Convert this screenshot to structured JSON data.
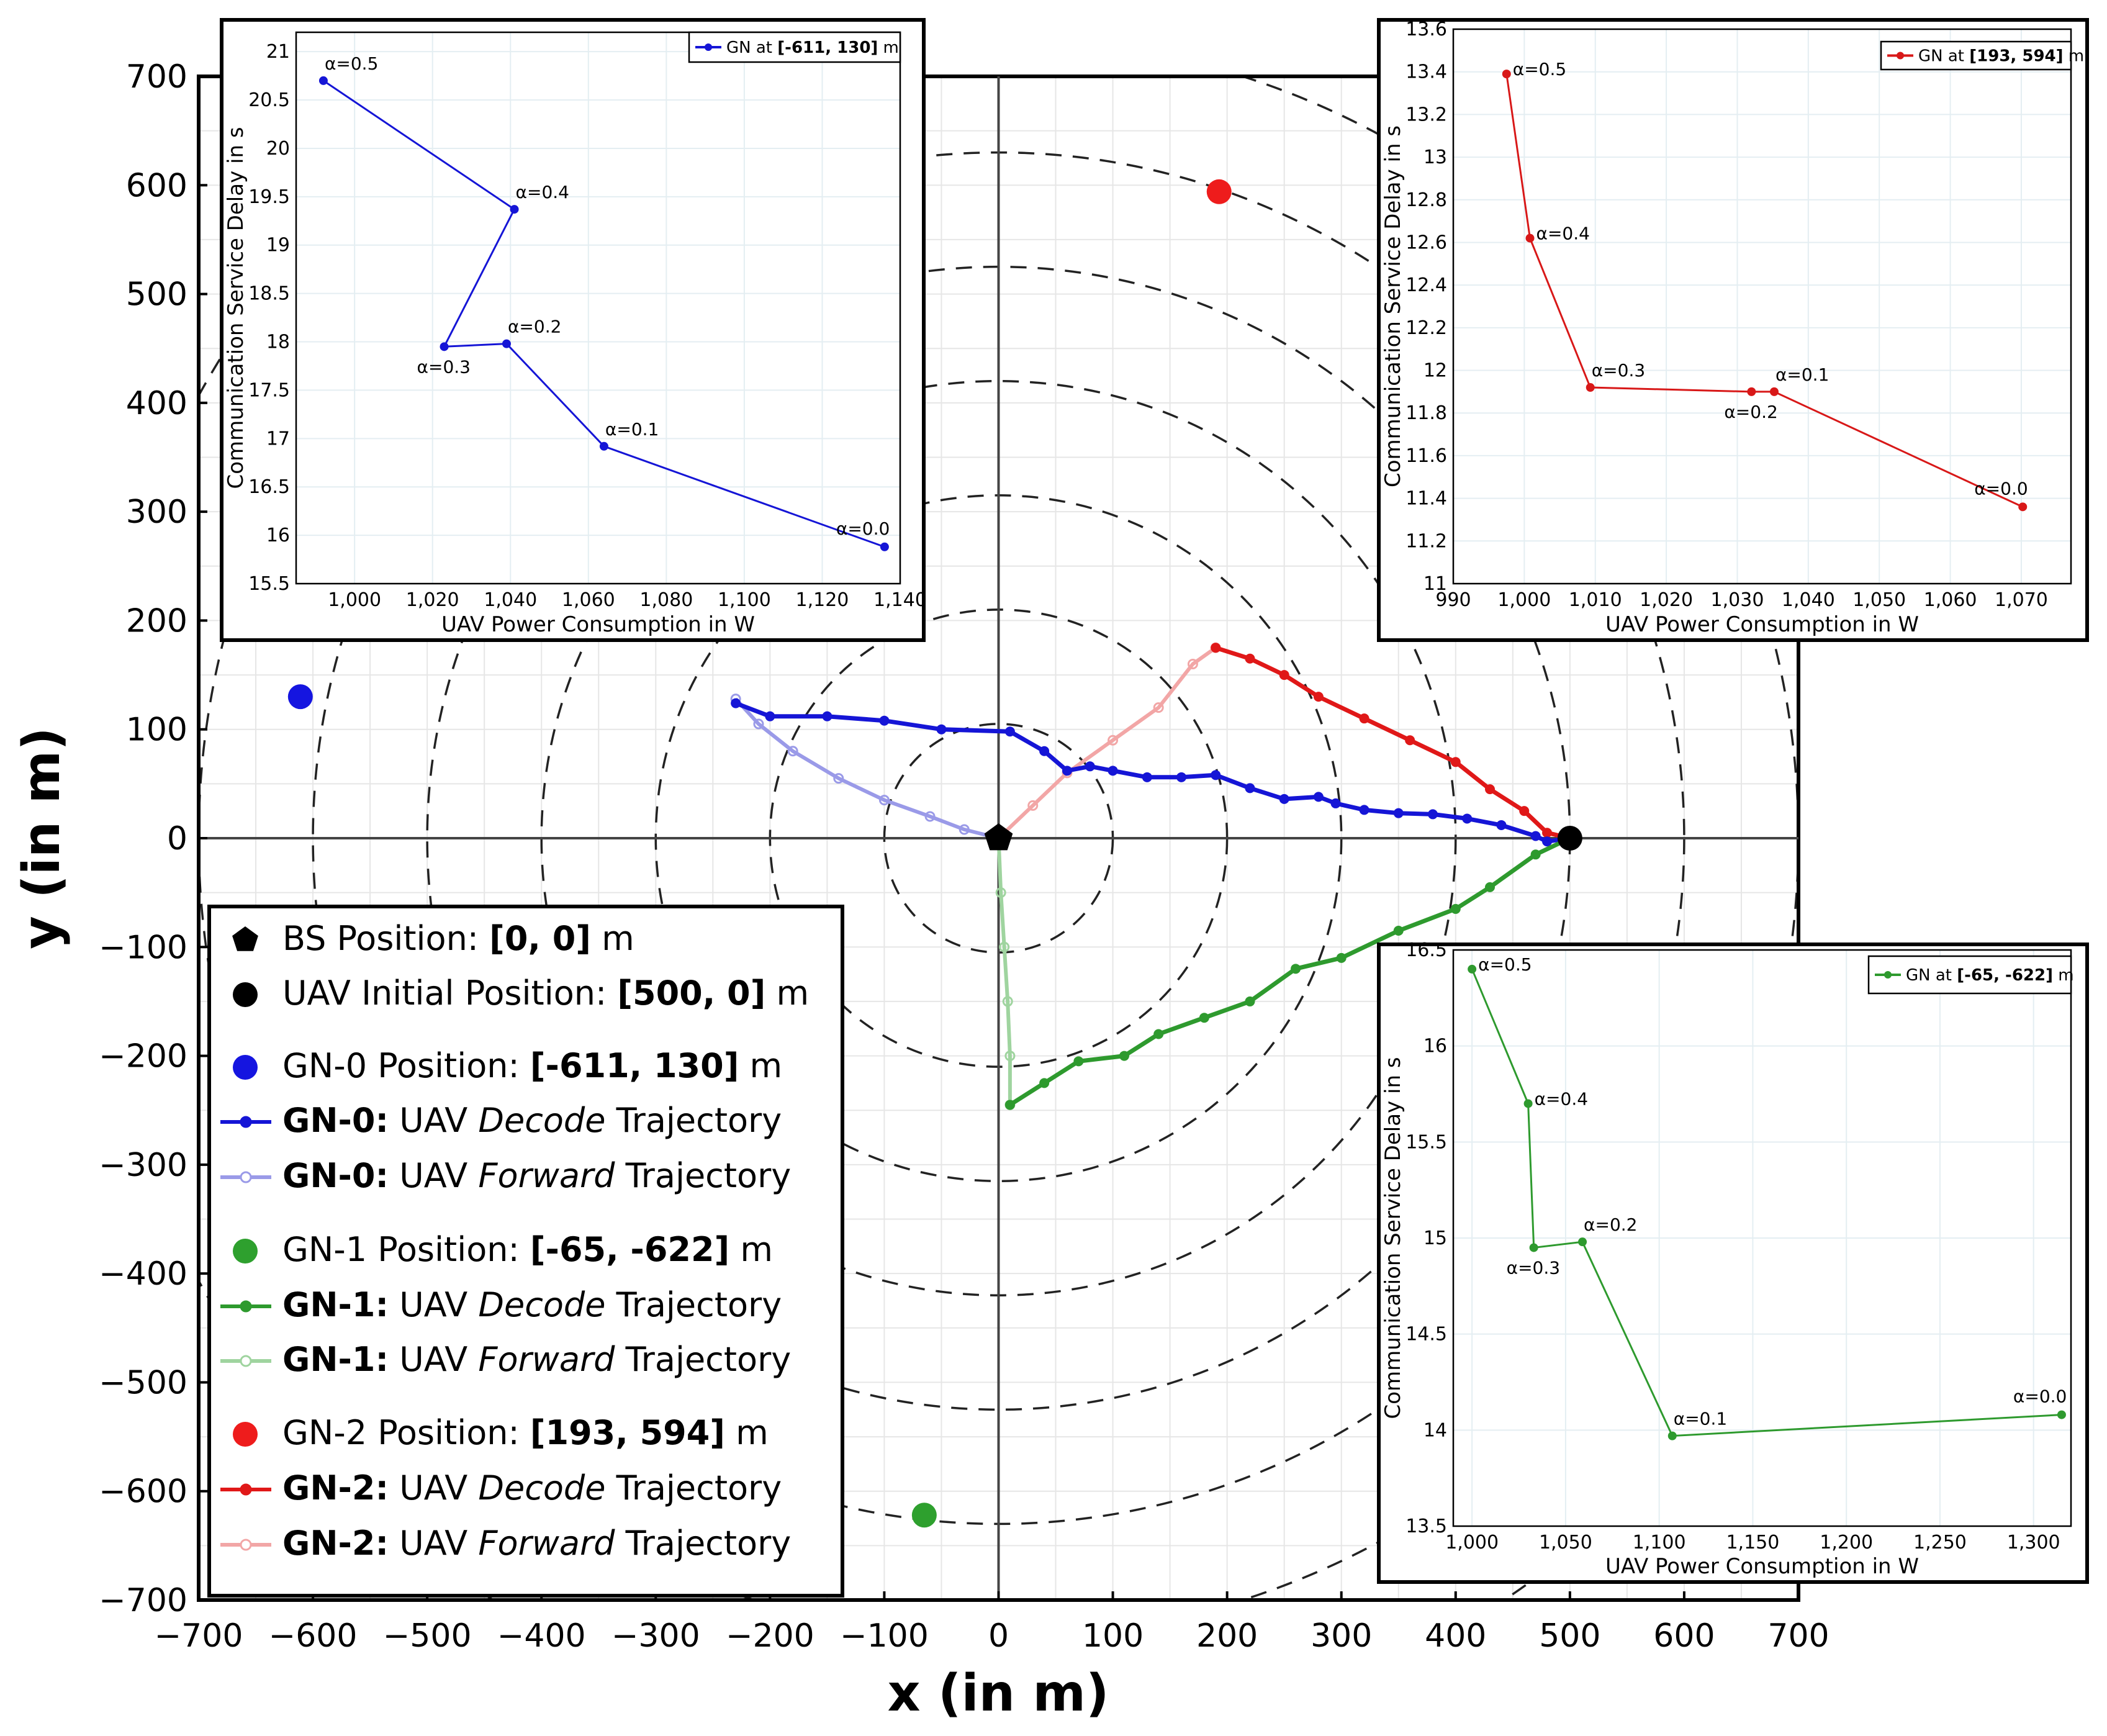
{
  "chart_data": {
    "main": {
      "type": "line",
      "xlabel": "x (in m)",
      "ylabel": "y (in m)",
      "xlim": [
        -700,
        700
      ],
      "ylim": [
        -700,
        700
      ],
      "xticks": [
        "−700",
        "−600",
        "−500",
        "−400",
        "−300",
        "−200",
        "−100",
        "0",
        "100",
        "200",
        "300",
        "400",
        "500",
        "600",
        "700"
      ],
      "yticks": [
        "700",
        "600",
        "500",
        "400",
        "300",
        "200",
        "100",
        "0",
        "−100",
        "−200",
        "−300",
        "−400",
        "−500",
        "−600",
        "−700"
      ],
      "circle_radii": [
        100,
        200,
        300,
        400,
        500,
        600,
        700,
        800
      ],
      "points": {
        "bs": [
          0,
          0
        ],
        "uav_initial": [
          500,
          0
        ],
        "gn0": [
          -611,
          130
        ],
        "gn1": [
          -65,
          -622
        ],
        "gn2": [
          193,
          594
        ]
      },
      "colors": {
        "gn0": "#1515d6",
        "gn0_light": "#9a9ae8",
        "gn1": "#2e9a2e",
        "gn1_light": "#9fd49f",
        "gn2": "#e01818",
        "gn2_light": "#f2a6a6"
      },
      "trajectories": {
        "gn0_decode": [
          [
            500,
            0
          ],
          [
            480,
            -3
          ],
          [
            470,
            2
          ],
          [
            440,
            12
          ],
          [
            410,
            18
          ],
          [
            380,
            22
          ],
          [
            350,
            23
          ],
          [
            320,
            26
          ],
          [
            295,
            32
          ],
          [
            280,
            38
          ],
          [
            250,
            36
          ],
          [
            220,
            46
          ],
          [
            190,
            58
          ],
          [
            160,
            56
          ],
          [
            130,
            56
          ],
          [
            100,
            62
          ],
          [
            80,
            66
          ],
          [
            60,
            62
          ],
          [
            40,
            80
          ],
          [
            10,
            98
          ],
          [
            -50,
            100
          ],
          [
            -100,
            108
          ],
          [
            -150,
            112
          ],
          [
            -200,
            112
          ],
          [
            -230,
            124
          ]
        ],
        "gn0_forward": [
          [
            0,
            0
          ],
          [
            -30,
            8
          ],
          [
            -60,
            20
          ],
          [
            -100,
            35
          ],
          [
            -140,
            55
          ],
          [
            -180,
            80
          ],
          [
            -210,
            105
          ],
          [
            -230,
            128
          ]
        ],
        "gn1_decode": [
          [
            500,
            0
          ],
          [
            470,
            -15
          ],
          [
            430,
            -45
          ],
          [
            400,
            -65
          ],
          [
            350,
            -85
          ],
          [
            300,
            -110
          ],
          [
            260,
            -120
          ],
          [
            220,
            -150
          ],
          [
            180,
            -165
          ],
          [
            140,
            -180
          ],
          [
            110,
            -200
          ],
          [
            70,
            -205
          ],
          [
            40,
            -225
          ],
          [
            10,
            -245
          ]
        ],
        "gn1_forward": [
          [
            0,
            0
          ],
          [
            2,
            -50
          ],
          [
            5,
            -100
          ],
          [
            8,
            -150
          ],
          [
            10,
            -200
          ],
          [
            10,
            -245
          ]
        ],
        "gn2_decode": [
          [
            500,
            0
          ],
          [
            480,
            5
          ],
          [
            460,
            25
          ],
          [
            430,
            45
          ],
          [
            400,
            70
          ],
          [
            360,
            90
          ],
          [
            320,
            110
          ],
          [
            280,
            130
          ],
          [
            250,
            150
          ],
          [
            220,
            165
          ],
          [
            190,
            175
          ]
        ],
        "gn2_forward": [
          [
            0,
            0
          ],
          [
            30,
            30
          ],
          [
            60,
            60
          ],
          [
            100,
            90
          ],
          [
            140,
            120
          ],
          [
            170,
            160
          ],
          [
            190,
            175
          ]
        ]
      },
      "legend": [
        {
          "bold_prefix": "",
          "text": "BS Position: ",
          "bold_value": "[0, 0]",
          "suffix": " m",
          "marker": "pentagon"
        },
        {
          "bold_prefix": "",
          "text": "UAV Initial Position: ",
          "bold_value": "[500, 0]",
          "suffix": " m",
          "marker": "black-dot"
        },
        {
          "bold_prefix": "",
          "text": "GN-0 Position: ",
          "bold_value": "[-611, 130]",
          "suffix": " m",
          "marker": "blue-dot"
        },
        {
          "bold_prefix": "GN-0:",
          "text": " UAV ",
          "italic": "Decode",
          "suffix": " Trajectory",
          "marker": "blue-line"
        },
        {
          "bold_prefix": "GN-0:",
          "text": " UAV ",
          "italic": "Forward",
          "suffix": " Trajectory",
          "marker": "blue-light-line"
        },
        {
          "bold_prefix": "",
          "text": "GN-1 Position: ",
          "bold_value": "[-65, -622]",
          "suffix": " m",
          "marker": "green-dot"
        },
        {
          "bold_prefix": "GN-1:",
          "text": " UAV ",
          "italic": "Decode",
          "suffix": " Trajectory",
          "marker": "green-line"
        },
        {
          "bold_prefix": "GN-1:",
          "text": " UAV ",
          "italic": "Forward",
          "suffix": " Trajectory",
          "marker": "green-light-line"
        },
        {
          "bold_prefix": "",
          "text": "GN-2 Position: ",
          "bold_value": "[193, 594]",
          "suffix": " m",
          "marker": "red-dot"
        },
        {
          "bold_prefix": "GN-2:",
          "text": " UAV ",
          "italic": "Decode",
          "suffix": " Trajectory",
          "marker": "red-line"
        },
        {
          "bold_prefix": "GN-2:",
          "text": " UAV ",
          "italic": "Forward",
          "suffix": " Trajectory",
          "marker": "red-light-line"
        }
      ]
    },
    "insets": [
      {
        "id": "gn0",
        "color": "#1515d6",
        "legend_prefix": "GN at ",
        "legend_value": "[-611, 130]",
        "legend_suffix": " m",
        "xlabel": "UAV Power Consumption in W",
        "ylabel": "Communication Service Delay in s",
        "xlim": [
          985,
          1140
        ],
        "ylim": [
          15.5,
          21.2
        ],
        "xticks": [
          1000,
          1020,
          1040,
          1060,
          1080,
          1100,
          1120,
          1140
        ],
        "xtick_labels": [
          "1,000",
          "1,020",
          "1,040",
          "1,060",
          "1,080",
          "1,100",
          "1,120",
          "1,140"
        ],
        "yticks": [
          15.5,
          16,
          16.5,
          17,
          17.5,
          18,
          18.5,
          19,
          19.5,
          20,
          20.5,
          21
        ],
        "ytick_labels": [
          "15.5",
          "16",
          "16.5",
          "17",
          "17.5",
          "18",
          "18.5",
          "19",
          "19.5",
          "20",
          "20.5",
          "21"
        ],
        "points": [
          {
            "x": 992,
            "y": 20.7,
            "label": "α=0.5",
            "pos": "above"
          },
          {
            "x": 1041,
            "y": 19.37,
            "label": "α=0.4",
            "pos": "above"
          },
          {
            "x": 1023,
            "y": 17.95,
            "label": "α=0.3",
            "pos": "below-left"
          },
          {
            "x": 1039,
            "y": 17.98,
            "label": "α=0.2",
            "pos": "above"
          },
          {
            "x": 1064,
            "y": 16.92,
            "label": "α=0.1",
            "pos": "above"
          },
          {
            "x": 1136,
            "y": 15.88,
            "label": "α=0.0",
            "pos": "above-left"
          }
        ]
      },
      {
        "id": "gn2",
        "color": "#d81818",
        "legend_prefix": "GN at ",
        "legend_value": "[193, 594]",
        "legend_suffix": " m",
        "xlabel": "UAV Power Consumption in W",
        "ylabel": "Communication Service Delay in s",
        "xlim": [
          990,
          1077
        ],
        "ylim": [
          11,
          13.6
        ],
        "xticks": [
          990,
          1000,
          1010,
          1020,
          1030,
          1040,
          1050,
          1060,
          1070
        ],
        "xtick_labels": [
          "990",
          "1,000",
          "1,010",
          "1,020",
          "1,030",
          "1,040",
          "1,050",
          "1,060",
          "1,070"
        ],
        "yticks": [
          11,
          11.2,
          11.4,
          11.6,
          11.8,
          12,
          12.2,
          12.4,
          12.6,
          12.8,
          13,
          13.2,
          13.4,
          13.6
        ],
        "ytick_labels": [
          "11",
          "11.2",
          "11.4",
          "11.6",
          "11.8",
          "12",
          "12.2",
          "12.4",
          "12.6",
          "12.8",
          "13",
          "13.2",
          "13.4",
          "13.6"
        ],
        "points": [
          {
            "x": 997.5,
            "y": 13.39,
            "label": "α=0.5",
            "pos": "right"
          },
          {
            "x": 1000.8,
            "y": 12.62,
            "label": "α=0.4",
            "pos": "right"
          },
          {
            "x": 1009.3,
            "y": 11.92,
            "label": "α=0.3",
            "pos": "above"
          },
          {
            "x": 1032,
            "y": 11.9,
            "label": "α=0.2",
            "pos": "below-left"
          },
          {
            "x": 1035.2,
            "y": 11.9,
            "label": "α=0.1",
            "pos": "above"
          },
          {
            "x": 1070.2,
            "y": 11.36,
            "label": "α=0.0",
            "pos": "above-left"
          }
        ]
      },
      {
        "id": "gn1",
        "color": "#2e9a2e",
        "legend_prefix": "GN at ",
        "legend_value": "[-65, -622]",
        "legend_suffix": " m",
        "xlabel": "UAV Power Consumption in W",
        "ylabel": "Communication Service Delay in s",
        "xlim": [
          990,
          1320
        ],
        "ylim": [
          13.5,
          16.5
        ],
        "xticks": [
          1000,
          1050,
          1100,
          1150,
          1200,
          1250,
          1300
        ],
        "xtick_labels": [
          "1,000",
          "1,050",
          "1,100",
          "1,150",
          "1,200",
          "1,250",
          "1,300"
        ],
        "yticks": [
          13.5,
          14,
          14.5,
          15,
          15.5,
          16,
          16.5
        ],
        "ytick_labels": [
          "13.5",
          "14",
          "14.5",
          "15",
          "15.5",
          "16",
          "16.5"
        ],
        "points": [
          {
            "x": 1000,
            "y": 16.4,
            "label": "α=0.5",
            "pos": "right"
          },
          {
            "x": 1030,
            "y": 15.7,
            "label": "α=0.4",
            "pos": "right"
          },
          {
            "x": 1033,
            "y": 14.95,
            "label": "α=0.3",
            "pos": "below-left"
          },
          {
            "x": 1059,
            "y": 14.98,
            "label": "α=0.2",
            "pos": "above"
          },
          {
            "x": 1107,
            "y": 13.97,
            "label": "α=0.1",
            "pos": "above"
          },
          {
            "x": 1315,
            "y": 14.08,
            "label": "α=0.0",
            "pos": "above-left"
          }
        ]
      }
    ]
  }
}
